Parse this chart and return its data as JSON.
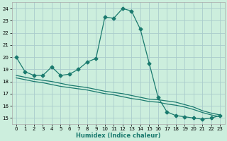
{
  "xlabel": "Humidex (Indice chaleur)",
  "bg_color": "#cceedd",
  "grid_color": "#aacccc",
  "line_color": "#1a7a6e",
  "xlim": [
    -0.5,
    23.5
  ],
  "ylim": [
    14.5,
    24.5
  ],
  "yticks": [
    15,
    16,
    17,
    18,
    19,
    20,
    21,
    22,
    23,
    24
  ],
  "xticks": [
    0,
    1,
    2,
    3,
    4,
    5,
    6,
    7,
    8,
    9,
    10,
    11,
    12,
    13,
    14,
    15,
    16,
    17,
    18,
    19,
    20,
    21,
    22,
    23
  ],
  "line1_x": [
    0,
    1,
    2,
    3,
    4,
    5,
    6,
    7,
    8,
    9,
    10,
    11,
    12,
    13,
    14,
    15,
    16,
    17,
    18,
    19,
    20,
    21,
    22,
    23
  ],
  "line1_y": [
    20.0,
    18.8,
    18.5,
    18.5,
    19.2,
    18.5,
    18.6,
    19.0,
    19.6,
    19.9,
    23.3,
    23.2,
    24.0,
    23.8,
    22.3,
    19.5,
    16.7,
    15.5,
    15.2,
    15.1,
    15.0,
    14.9,
    15.0,
    15.2
  ],
  "line2_x": [
    0,
    1,
    2,
    3,
    4,
    5,
    6,
    7,
    8,
    9,
    10,
    11,
    12,
    13,
    14,
    15,
    16,
    17,
    18,
    19,
    20,
    21,
    22,
    23
  ],
  "line2_y": [
    18.5,
    18.35,
    18.2,
    18.1,
    18.0,
    17.85,
    17.7,
    17.6,
    17.5,
    17.35,
    17.2,
    17.1,
    17.0,
    16.85,
    16.7,
    16.55,
    16.5,
    16.4,
    16.3,
    16.1,
    15.9,
    15.6,
    15.4,
    15.25
  ],
  "line3_x": [
    0,
    1,
    2,
    3,
    4,
    5,
    6,
    7,
    8,
    9,
    10,
    11,
    12,
    13,
    14,
    15,
    16,
    17,
    18,
    19,
    20,
    21,
    22,
    23
  ],
  "line3_y": [
    18.3,
    18.15,
    18.0,
    17.9,
    17.75,
    17.6,
    17.5,
    17.4,
    17.3,
    17.15,
    17.0,
    16.9,
    16.75,
    16.6,
    16.5,
    16.35,
    16.3,
    16.15,
    16.05,
    15.9,
    15.7,
    15.45,
    15.25,
    15.1
  ],
  "marker": "D",
  "markersize": 2.5,
  "linewidth": 0.9,
  "axis_fontsize": 6,
  "tick_fontsize": 5
}
